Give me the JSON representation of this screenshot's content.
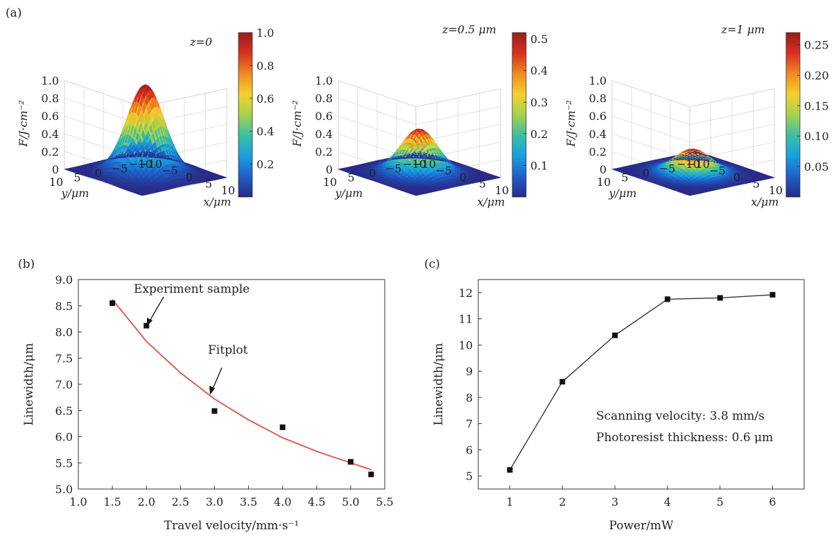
{
  "colormap": [
    "#2a2a87",
    "#1f5fc9",
    "#1aa0dd",
    "#3bbfa3",
    "#a6d24a",
    "#f4d02c",
    "#f08a24",
    "#d7301f",
    "#9b1c1c"
  ],
  "panel_a": {
    "label": "(a)",
    "plots": [
      {
        "title": "z=0",
        "peak": 1.0,
        "zlabel": "F/J·cm⁻²",
        "zticks": [
          "0",
          "0.2",
          "0.4",
          "0.6",
          "0.8",
          "1.0"
        ],
        "cbar_max": 1.0,
        "cbar_ticks": [
          0.2,
          0.4,
          0.6,
          0.8,
          1.0
        ],
        "cbar_labels": [
          "0.2",
          "0.4",
          "0.6",
          "0.8",
          "1.0"
        ],
        "xlabel": "x/μm",
        "ylabel": "y/μm",
        "xticks": [
          "−10",
          "−5",
          "0",
          "5",
          "10"
        ],
        "yticks": [
          "10",
          "5",
          "0",
          "−5",
          "−10"
        ]
      },
      {
        "title": "z=0.5 μm",
        "peak": 0.5,
        "zlabel": "F/J·cm⁻²",
        "zticks": [
          "0",
          "0.2",
          "0.4",
          "0.6",
          "0.8",
          "1.0"
        ],
        "cbar_max": 0.52,
        "cbar_ticks": [
          0.1,
          0.2,
          0.3,
          0.4,
          0.5
        ],
        "cbar_labels": [
          "0.1",
          "0.2",
          "0.3",
          "0.4",
          "0.5"
        ],
        "xlabel": "x/μm",
        "ylabel": "y/μm",
        "xticks": [
          "−10",
          "−5",
          "0",
          "5",
          "10"
        ],
        "yticks": [
          "10",
          "5",
          "0",
          "−5",
          "−10"
        ]
      },
      {
        "title": "z=1 μm",
        "peak": 0.27,
        "zlabel": "F/J·cm⁻²",
        "zticks": [
          "0",
          "0.2",
          "0.4",
          "0.6",
          "0.8",
          "1.0"
        ],
        "cbar_max": 0.27,
        "cbar_ticks": [
          0.05,
          0.1,
          0.15,
          0.2,
          0.25
        ],
        "cbar_labels": [
          "0.05",
          "0.10",
          "0.15",
          "0.20",
          "0.25"
        ],
        "xlabel": "x/μm",
        "ylabel": "y/μm",
        "xticks": [
          "−10",
          "−5",
          "0",
          "5",
          "10"
        ],
        "yticks": [
          "10",
          "5",
          "0",
          "−5",
          "−10"
        ]
      }
    ]
  },
  "chart_data": [
    {
      "type": "scatter",
      "label": "(b)",
      "title": "",
      "xlabel": "Travel velocity/mm·s⁻¹",
      "ylabel": "Linewidth/μm",
      "xlim": [
        1.0,
        5.5
      ],
      "ylim": [
        5.0,
        9.0
      ],
      "xticks": [
        "1.0",
        "1.5",
        "2.0",
        "2.5",
        "3.0",
        "3.5",
        "4.0",
        "4.5",
        "5.0",
        "5.5"
      ],
      "yticks": [
        "5.0",
        "5.5",
        "6.0",
        "6.5",
        "7.0",
        "7.5",
        "8.0",
        "8.5",
        "9.0"
      ],
      "series": [
        {
          "name": "Experiment sample",
          "x": [
            1.5,
            2.0,
            3.0,
            4.0,
            5.0,
            5.3
          ],
          "y": [
            8.55,
            8.12,
            6.49,
            6.18,
            5.52,
            5.28
          ]
        },
        {
          "name": "Fitplot",
          "x": [
            1.5,
            2.0,
            2.5,
            3.0,
            3.5,
            4.0,
            4.5,
            5.0,
            5.3
          ],
          "y": [
            8.62,
            7.82,
            7.22,
            6.72,
            6.32,
            5.98,
            5.72,
            5.5,
            5.37
          ]
        }
      ],
      "annotations": [
        "Experiment sample",
        "Fitplot"
      ]
    },
    {
      "type": "line",
      "label": "(c)",
      "title": "",
      "xlabel": "Power/mW",
      "ylabel": "Linewidth/μm",
      "xlim": [
        0.4,
        6.6
      ],
      "ylim": [
        4.5,
        12.5
      ],
      "xticks": [
        "1",
        "2",
        "3",
        "4",
        "5",
        "6"
      ],
      "yticks": [
        "5",
        "6",
        "7",
        "8",
        "9",
        "10",
        "11",
        "12"
      ],
      "series": [
        {
          "name": "Linewidth",
          "x": [
            1,
            2,
            3,
            4,
            5,
            6
          ],
          "y": [
            5.23,
            8.6,
            10.37,
            11.75,
            11.8,
            11.92
          ]
        }
      ],
      "annotations": [
        "Scanning velocity: 3.8 mm/s",
        "Photoresist thickness: 0.6 μm"
      ]
    }
  ]
}
